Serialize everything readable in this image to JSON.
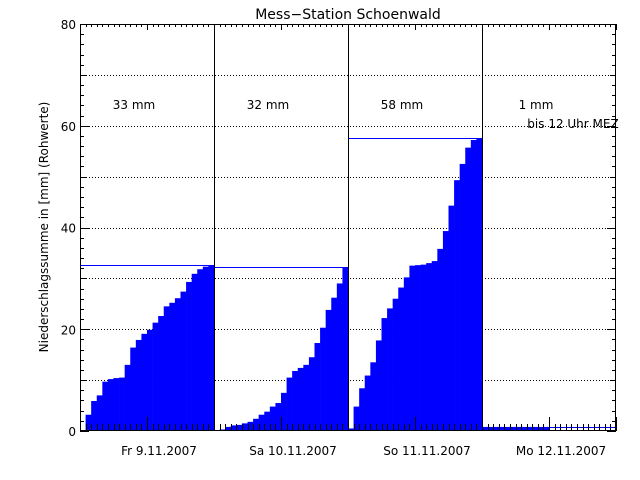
{
  "chart_data": {
    "type": "bar",
    "title": "Mess−Station Schoenwald",
    "ylabel": "Niederschlagssumme in [mm] (Rohwerte)",
    "ylim": [
      0,
      80
    ],
    "yticks": [
      "0",
      "20",
      "40",
      "60",
      "80"
    ],
    "hours_per_day": 24,
    "grid": true,
    "colors": {
      "bars": "#0000ff",
      "axes": "#000000",
      "total_line": "#0000ff"
    },
    "days": [
      {
        "label": "Fr 9.11.2007",
        "total_label": "33 mm",
        "note": "",
        "total": 32.6,
        "values": [
          0.0,
          3.2,
          5.9,
          7.0,
          9.7,
          10.2,
          10.4,
          10.5,
          13.0,
          16.4,
          17.9,
          19.1,
          19.9,
          21.3,
          22.6,
          24.5,
          25.2,
          26.1,
          27.4,
          29.3,
          30.9,
          31.8,
          32.3,
          32.5
        ]
      },
      {
        "label": "Sa 10.11.2007",
        "total_label": "32 mm",
        "note": "",
        "total": 32.2,
        "values": [
          0.0,
          0.3,
          0.8,
          1.1,
          1.2,
          1.5,
          1.8,
          2.4,
          3.2,
          3.8,
          4.8,
          5.5,
          7.5,
          10.5,
          11.8,
          12.4,
          13.0,
          14.5,
          17.3,
          20.3,
          23.8,
          26.2,
          29.0,
          32.1
        ]
      },
      {
        "label": "So 11.11.2007",
        "total_label": "58 mm",
        "note": "",
        "total": 57.5,
        "values": [
          0.5,
          4.8,
          8.4,
          10.9,
          13.5,
          17.8,
          22.2,
          24.1,
          26.0,
          28.2,
          30.2,
          32.5,
          32.6,
          32.7,
          33.0,
          33.4,
          35.8,
          39.3,
          44.3,
          49.3,
          52.5,
          55.7,
          57.2,
          57.5
        ]
      },
      {
        "label": "Mo 12.11.2007",
        "total_label": "1 mm",
        "note": "bis 12 Uhr MEZ",
        "total": 0.8,
        "values": [
          0.8,
          0.8,
          0.8,
          0.8,
          0.8,
          0.8,
          0.8,
          0.8,
          0.8,
          0.8,
          0.8,
          0.8
        ]
      }
    ]
  }
}
